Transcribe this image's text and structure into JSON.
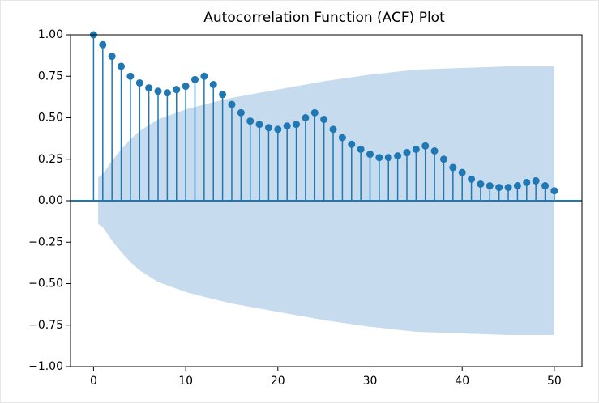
{
  "chart_data": {
    "type": "stem",
    "title": "Autocorrelation Function (ACF) Plot",
    "color": "#1f77b4",
    "x": [
      0,
      1,
      2,
      3,
      4,
      5,
      6,
      7,
      8,
      9,
      10,
      11,
      12,
      13,
      14,
      15,
      16,
      17,
      18,
      19,
      20,
      21,
      22,
      23,
      24,
      25,
      26,
      27,
      28,
      29,
      30,
      31,
      32,
      33,
      34,
      35,
      36,
      37,
      38,
      39,
      40,
      41,
      42,
      43,
      44,
      45,
      46,
      47,
      48,
      49,
      50
    ],
    "values": [
      1.0,
      0.94,
      0.87,
      0.81,
      0.75,
      0.71,
      0.68,
      0.66,
      0.65,
      0.67,
      0.69,
      0.73,
      0.75,
      0.7,
      0.64,
      0.58,
      0.53,
      0.48,
      0.46,
      0.44,
      0.43,
      0.45,
      0.46,
      0.5,
      0.53,
      0.49,
      0.43,
      0.38,
      0.34,
      0.31,
      0.28,
      0.26,
      0.26,
      0.27,
      0.29,
      0.31,
      0.33,
      0.3,
      0.25,
      0.2,
      0.17,
      0.13,
      0.1,
      0.09,
      0.08,
      0.08,
      0.09,
      0.11,
      0.12,
      0.09,
      0.06
    ],
    "band": {
      "color": "#c6dbee",
      "x": [
        0.5,
        1,
        2,
        3,
        4,
        5,
        7,
        10,
        12,
        15,
        20,
        25,
        30,
        35,
        40,
        45,
        50
      ],
      "upper": [
        0.14,
        0.16,
        0.24,
        0.31,
        0.37,
        0.42,
        0.49,
        0.55,
        0.58,
        0.62,
        0.67,
        0.72,
        0.76,
        0.79,
        0.8,
        0.81,
        0.81
      ],
      "lower": [
        -0.14,
        -0.16,
        -0.24,
        -0.31,
        -0.37,
        -0.42,
        -0.49,
        -0.55,
        -0.58,
        -0.62,
        -0.67,
        -0.72,
        -0.76,
        -0.79,
        -0.8,
        -0.81,
        -0.81
      ]
    },
    "xlim": [
      -2.5,
      53
    ],
    "ylim": [
      -1,
      1
    ],
    "xticks": [
      0,
      10,
      20,
      30,
      40,
      50
    ],
    "yticks": [
      {
        "value": -1,
        "label": "−1.00"
      },
      {
        "value": -0.75,
        "label": "−0.75"
      },
      {
        "value": -0.5,
        "label": "−0.50"
      },
      {
        "value": -0.25,
        "label": "−0.25"
      },
      {
        "value": 0,
        "label": "0.00"
      },
      {
        "value": 0.25,
        "label": "0.25"
      },
      {
        "value": 0.5,
        "label": "0.50"
      },
      {
        "value": 0.75,
        "label": "0.75"
      },
      {
        "value": 1,
        "label": "1.00"
      }
    ]
  }
}
